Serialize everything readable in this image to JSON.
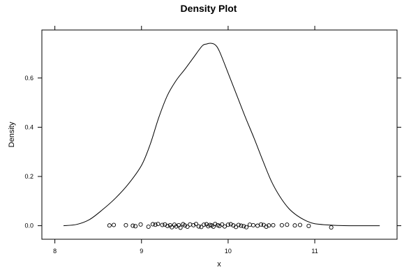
{
  "chart_data": {
    "type": "line",
    "title": "Density Plot",
    "xlabel": "x",
    "ylabel": "Density",
    "xlim": [
      7.85,
      11.95
    ],
    "ylim": [
      -0.055,
      0.795
    ],
    "grid": false,
    "x_ticks": [
      8,
      9,
      10,
      11
    ],
    "y_ticks": [
      0.0,
      0.2,
      0.4,
      0.6
    ],
    "x_tick_labels": [
      "8",
      "9",
      "10",
      "11"
    ],
    "y_tick_labels": [
      "0.0",
      "0.2",
      "0.4",
      "0.6"
    ],
    "density_curve": {
      "x": [
        8.1,
        8.25,
        8.4,
        8.55,
        8.7,
        8.85,
        9.0,
        9.1,
        9.2,
        9.3,
        9.4,
        9.5,
        9.6,
        9.7,
        9.75,
        9.8,
        9.85,
        9.9,
        10.0,
        10.1,
        10.2,
        10.3,
        10.4,
        10.5,
        10.6,
        10.7,
        10.8,
        10.9,
        11.0,
        11.2,
        11.4,
        11.6,
        11.75
      ],
      "y": [
        0.0,
        0.005,
        0.025,
        0.065,
        0.112,
        0.17,
        0.245,
        0.33,
        0.44,
        0.53,
        0.59,
        0.635,
        0.683,
        0.73,
        0.738,
        0.741,
        0.735,
        0.708,
        0.62,
        0.53,
        0.44,
        0.355,
        0.265,
        0.18,
        0.117,
        0.07,
        0.04,
        0.02,
        0.008,
        0.002,
        0.0,
        0.0,
        0.0
      ]
    },
    "rug_points": {
      "x": [
        8.63,
        8.68,
        8.82,
        8.9,
        8.93,
        8.99,
        9.08,
        9.13,
        9.16,
        9.19,
        9.24,
        9.27,
        9.3,
        9.33,
        9.35,
        9.38,
        9.4,
        9.43,
        9.45,
        9.48,
        9.5,
        9.53,
        9.56,
        9.6,
        9.63,
        9.66,
        9.69,
        9.72,
        9.75,
        9.77,
        9.79,
        9.81,
        9.83,
        9.85,
        9.88,
        9.9,
        9.93,
        9.96,
        10.0,
        10.03,
        10.06,
        10.09,
        10.12,
        10.15,
        10.18,
        10.21,
        10.25,
        10.29,
        10.34,
        10.38,
        10.41,
        10.44,
        10.47,
        10.52,
        10.62,
        10.68,
        10.77,
        10.83,
        10.93,
        11.19
      ],
      "y": [
        0.001,
        0.003,
        0.002,
        0.0,
        -0.002,
        0.005,
        -0.004,
        0.006,
        0.004,
        0.007,
        0.003,
        0.005,
        -0.001,
        0.002,
        -0.006,
        0.004,
        -0.003,
        0.002,
        -0.008,
        0.006,
        0.001,
        -0.004,
        0.005,
        0.002,
        0.007,
        -0.003,
        -0.005,
        0.004,
        0.006,
        -0.002,
        0.003,
        0.001,
        -0.004,
        0.007,
        0.002,
        -0.001,
        0.005,
        -0.003,
        0.004,
        0.006,
        0.001,
        -0.005,
        0.003,
        0.0,
        -0.002,
        -0.006,
        0.004,
        0.002,
        0.0,
        0.005,
        0.003,
        -0.004,
        0.001,
        0.002,
        0.002,
        0.004,
        0.001,
        0.003,
        -0.001,
        -0.007
      ]
    }
  }
}
